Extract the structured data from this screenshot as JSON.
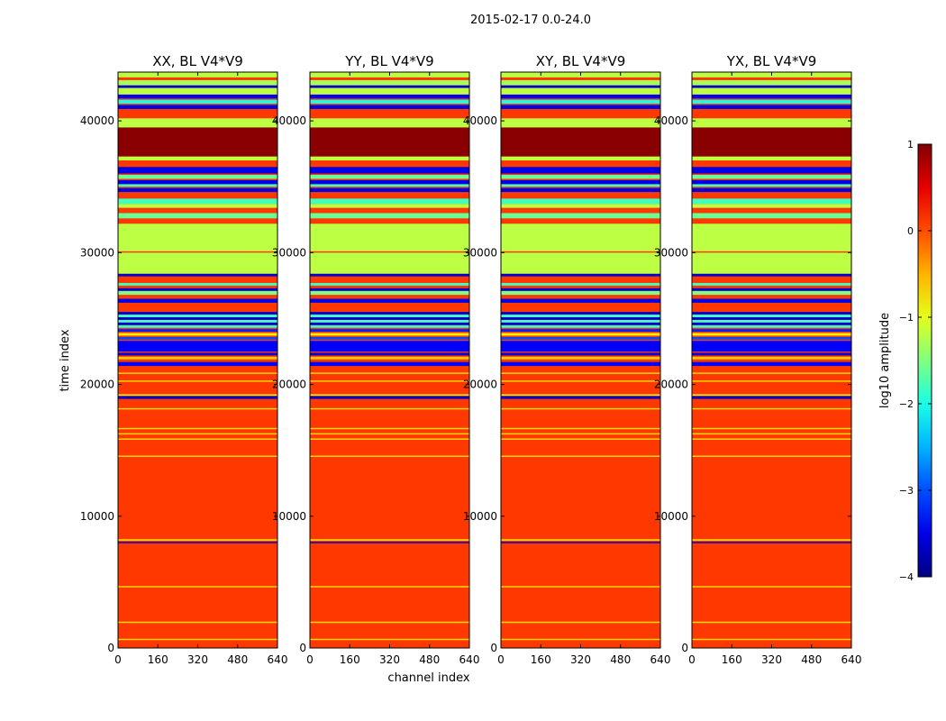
{
  "figure": {
    "suptitle": "2015-02-17 0.0-24.0",
    "xlabel": "channel index",
    "ylabel": "time index"
  },
  "colorbar": {
    "label": "log10 amplitude",
    "colormap": "jet",
    "range": [
      -4,
      1
    ],
    "ticks": [
      1,
      0,
      -1,
      -2,
      -3,
      -4
    ],
    "tick_labels": [
      "1",
      "0",
      "−1",
      "−2",
      "−3",
      "−4"
    ]
  },
  "chart_data": [
    {
      "type": "heatmap",
      "title": "XX, BL V4*V9",
      "x_range": [
        0,
        640
      ],
      "y_range": [
        0,
        43700
      ],
      "x_ticks": [
        0,
        160,
        320,
        480,
        640
      ],
      "y_ticks": [
        0,
        10000,
        20000,
        30000,
        40000
      ]
    },
    {
      "type": "heatmap",
      "title": "YY, BL V4*V9",
      "x_range": [
        0,
        640
      ],
      "y_range": [
        0,
        43700
      ],
      "x_ticks": [
        0,
        160,
        320,
        480,
        640
      ],
      "y_ticks": [
        0,
        10000,
        20000,
        30000,
        40000
      ]
    },
    {
      "type": "heatmap",
      "title": "XY, BL V4*V9",
      "x_range": [
        0,
        640
      ],
      "y_range": [
        0,
        43700
      ],
      "x_ticks": [
        0,
        160,
        320,
        480,
        640
      ],
      "y_ticks": [
        0,
        10000,
        20000,
        30000,
        40000
      ]
    },
    {
      "type": "heatmap",
      "title": "YX, BL V4*V9",
      "x_range": [
        0,
        640
      ],
      "y_range": [
        0,
        43700
      ],
      "x_ticks": [
        0,
        160,
        320,
        480,
        640
      ],
      "y_ticks": [
        0,
        10000,
        20000,
        30000,
        40000
      ]
    }
  ],
  "bands": [
    {
      "y0": 0,
      "y1": 43700,
      "v": 0.1
    },
    {
      "y0": 600,
      "y1": 700,
      "v": -0.7
    },
    {
      "y0": 1900,
      "y1": 2000,
      "v": -0.7
    },
    {
      "y0": 4600,
      "y1": 4700,
      "v": -0.7
    },
    {
      "y0": 7950,
      "y1": 8050,
      "v": -3.6
    },
    {
      "y0": 8150,
      "y1": 8250,
      "v": -0.8
    },
    {
      "y0": 14500,
      "y1": 14600,
      "v": -0.7
    },
    {
      "y0": 15800,
      "y1": 15900,
      "v": -0.7
    },
    {
      "y0": 16200,
      "y1": 16300,
      "v": -0.7
    },
    {
      "y0": 16600,
      "y1": 16700,
      "v": -0.7
    },
    {
      "y0": 18100,
      "y1": 18200,
      "v": -0.7
    },
    {
      "y0": 18900,
      "y1": 19100,
      "v": -3.6
    },
    {
      "y0": 19150,
      "y1": 19250,
      "v": -1.0
    },
    {
      "y0": 20200,
      "y1": 20300,
      "v": -0.7
    },
    {
      "y0": 20800,
      "y1": 20900,
      "v": -0.7
    },
    {
      "y0": 21400,
      "y1": 21700,
      "v": -3.4
    },
    {
      "y0": 21900,
      "y1": 22100,
      "v": -0.6
    },
    {
      "y0": 22200,
      "y1": 22400,
      "v": -3.5
    },
    {
      "y0": 22500,
      "y1": 23300,
      "v": -3.4
    },
    {
      "y0": 23400,
      "y1": 23600,
      "v": -3.0
    },
    {
      "y0": 23700,
      "y1": 23900,
      "v": -0.8
    },
    {
      "y0": 24000,
      "y1": 24200,
      "v": -3.2
    },
    {
      "y0": 24300,
      "y1": 24500,
      "v": -1.8
    },
    {
      "y0": 24500,
      "y1": 24700,
      "v": -3.6
    },
    {
      "y0": 24700,
      "y1": 24900,
      "v": -1.8
    },
    {
      "y0": 24900,
      "y1": 25100,
      "v": -3.6
    },
    {
      "y0": 25100,
      "y1": 25300,
      "v": -1.8
    },
    {
      "y0": 25300,
      "y1": 25500,
      "v": -3.6
    },
    {
      "y0": 26200,
      "y1": 26500,
      "v": -3.5
    },
    {
      "y0": 26800,
      "y1": 27100,
      "v": -1.5
    },
    {
      "y0": 27100,
      "y1": 27300,
      "v": -3.6
    },
    {
      "y0": 27500,
      "y1": 27700,
      "v": -1.8
    },
    {
      "y0": 28200,
      "y1": 28400,
      "v": -3.6
    },
    {
      "y0": 28400,
      "y1": 32200,
      "v": -1.2
    },
    {
      "y0": 30000,
      "y1": 30100,
      "v": 0.1
    },
    {
      "y0": 32200,
      "y1": 33000,
      "v": 0.1
    },
    {
      "y0": 32600,
      "y1": 33000,
      "v": -1.6
    },
    {
      "y0": 33400,
      "y1": 33700,
      "v": -1.2
    },
    {
      "y0": 33700,
      "y1": 34100,
      "v": -1.8
    },
    {
      "y0": 34600,
      "y1": 34900,
      "v": -3.5
    },
    {
      "y0": 35000,
      "y1": 35200,
      "v": -1.8
    },
    {
      "y0": 35200,
      "y1": 35500,
      "v": -3.5
    },
    {
      "y0": 35600,
      "y1": 35900,
      "v": -1.6
    },
    {
      "y0": 36000,
      "y1": 36500,
      "v": -3.5
    },
    {
      "y0": 36600,
      "y1": 37000,
      "v": 0.1
    },
    {
      "y0": 37000,
      "y1": 37300,
      "v": -1.2
    },
    {
      "y0": 37300,
      "y1": 39500,
      "v": 0.95
    },
    {
      "y0": 39500,
      "y1": 40200,
      "v": -1.2
    },
    {
      "y0": 40200,
      "y1": 40900,
      "v": 0.1
    },
    {
      "y0": 40900,
      "y1": 41200,
      "v": -3.5
    },
    {
      "y0": 41300,
      "y1": 41600,
      "v": -2.0
    },
    {
      "y0": 41700,
      "y1": 42000,
      "v": -3.4
    },
    {
      "y0": 42000,
      "y1": 42500,
      "v": -1.2
    },
    {
      "y0": 42500,
      "y1": 42700,
      "v": -3.6
    },
    {
      "y0": 42700,
      "y1": 43100,
      "v": -1.3
    },
    {
      "y0": 43100,
      "y1": 43300,
      "v": 0.1
    },
    {
      "y0": 43300,
      "y1": 43700,
      "v": -1.2
    }
  ]
}
